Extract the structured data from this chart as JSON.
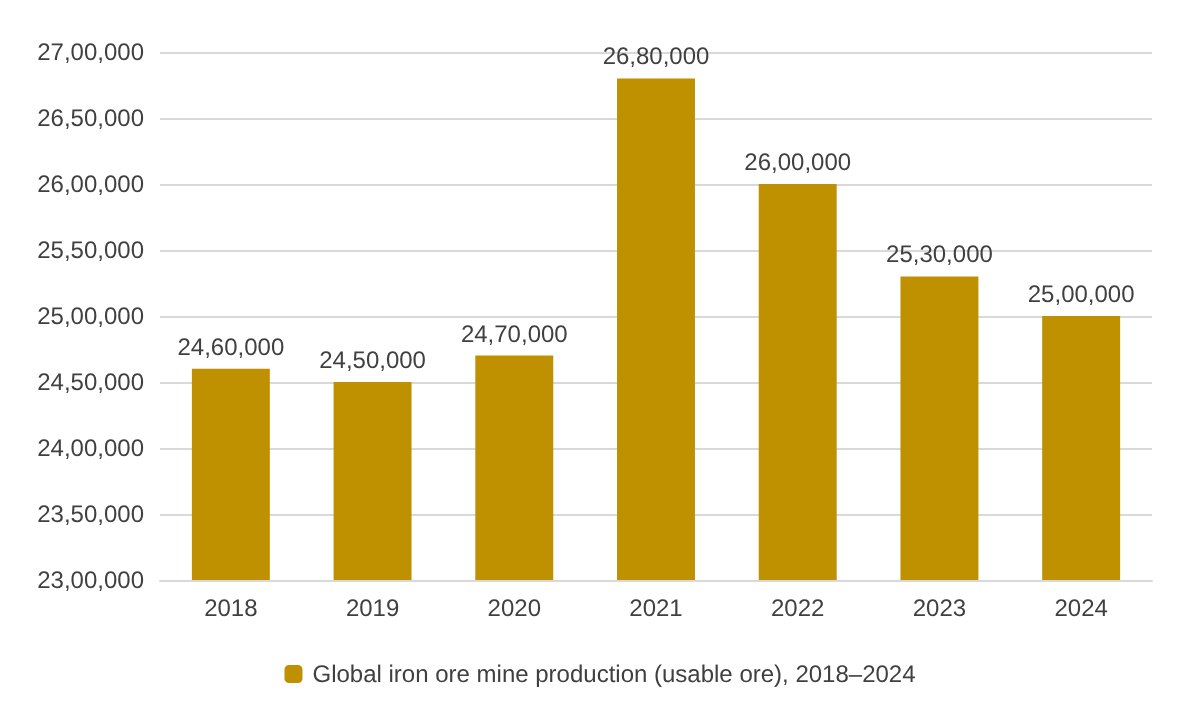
{
  "chart_data": {
    "type": "bar",
    "categories": [
      "2018",
      "2019",
      "2020",
      "2021",
      "2022",
      "2023",
      "2024"
    ],
    "series": [
      {
        "name": "Global iron ore mine production (usable ore), 2018–2024",
        "color": "#bf9000",
        "values": [
          2460000,
          2450000,
          2470000,
          2680000,
          2600000,
          2530000,
          2500000
        ],
        "value_labels": [
          "24,60,000",
          "24,50,000",
          "24,70,000",
          "26,80,000",
          "26,00,000",
          "25,30,000",
          "25,00,000"
        ]
      }
    ],
    "ylim": [
      2300000,
      2700000
    ],
    "yticks": [
      {
        "value": 2300000,
        "label": "23,00,000"
      },
      {
        "value": 2350000,
        "label": "23,50,000"
      },
      {
        "value": 2400000,
        "label": "24,00,000"
      },
      {
        "value": 2450000,
        "label": "24,50,000"
      },
      {
        "value": 2500000,
        "label": "25,00,000"
      },
      {
        "value": 2550000,
        "label": "25,50,000"
      },
      {
        "value": 2600000,
        "label": "26,00,000"
      },
      {
        "value": 2650000,
        "label": "26,50,000"
      },
      {
        "value": 2700000,
        "label": "27,00,000"
      }
    ],
    "grid": "y",
    "legend": "bottom"
  }
}
